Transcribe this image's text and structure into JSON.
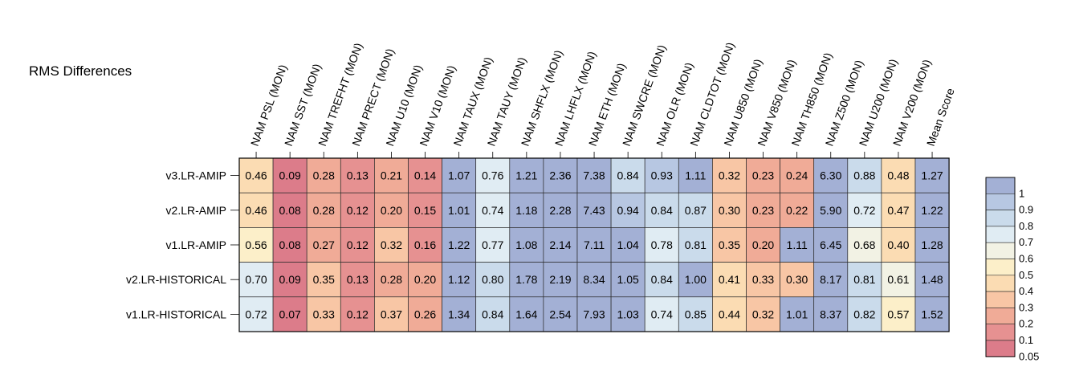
{
  "chart_data": {
    "type": "heatmap",
    "title": "RMS Differences",
    "columns": [
      "NAM PSL (MON)",
      "NAM SST (MON)",
      "NAM TREFHT (MON)",
      "NAM PRECT (MON)",
      "NAM U10 (MON)",
      "NAM V10 (MON)",
      "NAM TAUX (MON)",
      "NAM TAUY (MON)",
      "NAM SHFLX (MON)",
      "NAM LHFLX (MON)",
      "NAM ETH (MON)",
      "NAM SWCRE (MON)",
      "NAM OLR (MON)",
      "NAM CLDTOT (MON)",
      "NAM U850 (MON)",
      "NAM V850 (MON)",
      "NAM TH850 (MON)",
      "NAM Z500 (MON)",
      "NAM U200 (MON)",
      "NAM V200 (MON)",
      "Mean Score"
    ],
    "rows": [
      "v3.LR-AMIP",
      "v2.LR-AMIP",
      "v1.LR-AMIP",
      "v2.LR-HISTORICAL",
      "v1.LR-HISTORICAL"
    ],
    "values": [
      [
        0.46,
        0.09,
        0.28,
        0.13,
        0.21,
        0.14,
        1.07,
        0.76,
        1.21,
        2.36,
        7.38,
        0.84,
        0.93,
        1.11,
        0.32,
        0.23,
        0.24,
        6.3,
        0.88,
        0.48,
        1.27
      ],
      [
        0.46,
        0.08,
        0.28,
        0.12,
        0.2,
        0.15,
        1.01,
        0.74,
        1.18,
        2.28,
        7.43,
        0.94,
        0.84,
        0.87,
        0.3,
        0.23,
        0.22,
        5.9,
        0.72,
        0.47,
        1.22
      ],
      [
        0.56,
        0.08,
        0.27,
        0.12,
        0.32,
        0.16,
        1.22,
        0.77,
        1.08,
        2.14,
        7.11,
        1.04,
        0.78,
        0.81,
        0.35,
        0.2,
        1.11,
        6.45,
        0.68,
        0.4,
        1.28
      ],
      [
        0.7,
        0.09,
        0.35,
        0.13,
        0.28,
        0.2,
        1.12,
        0.8,
        1.78,
        2.19,
        8.34,
        1.05,
        0.84,
        1.0,
        0.41,
        0.33,
        0.3,
        8.17,
        0.81,
        0.61,
        1.48
      ],
      [
        0.72,
        0.07,
        0.33,
        0.12,
        0.37,
        0.26,
        1.34,
        0.84,
        1.64,
        2.54,
        7.93,
        1.03,
        0.74,
        0.85,
        0.44,
        0.32,
        1.01,
        8.37,
        0.82,
        0.57,
        1.52
      ]
    ],
    "colorbar": {
      "ticks": [
        "1",
        "0.9",
        "0.8",
        "0.7",
        "0.6",
        "0.5",
        "0.4",
        "0.3",
        "0.2",
        "0.1",
        "0.05"
      ],
      "colors": [
        "#a3b0d5",
        "#b7c7e2",
        "#cadbeb",
        "#e0ecf3",
        "#f2f2e4",
        "#fcefc9",
        "#fbdcb3",
        "#f8c6a5",
        "#f0ab97",
        "#e69191",
        "#dc7c8a"
      ],
      "bins": [
        1.0,
        0.9,
        0.8,
        0.7,
        0.6,
        0.5,
        0.4,
        0.3,
        0.2,
        0.1,
        0.05
      ]
    }
  }
}
